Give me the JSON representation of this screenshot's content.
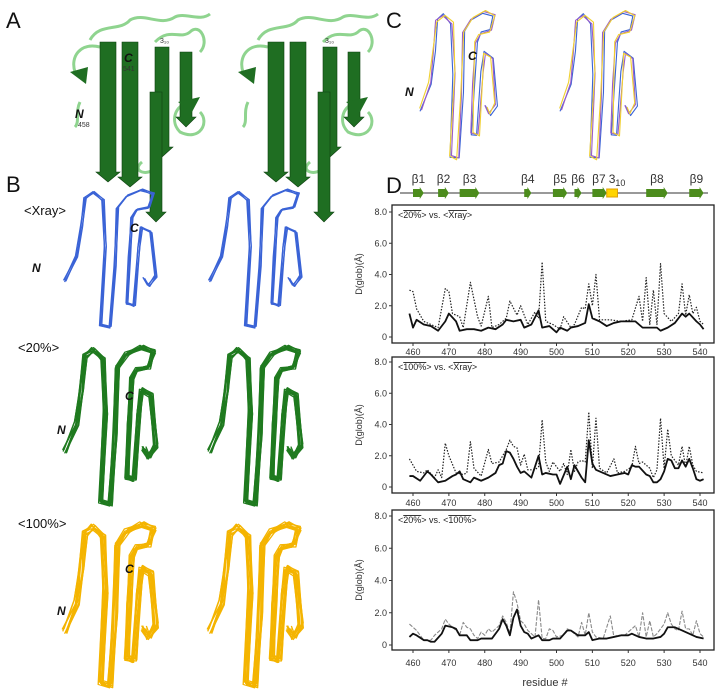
{
  "panels": {
    "A": {
      "label": "A",
      "c_term": "C",
      "c_res": "541",
      "n_term": "N",
      "n_res": "458",
      "helix": "3₁₀",
      "colors": {
        "strand": "#1f6e22",
        "loop": "#8fd48f"
      }
    },
    "B": {
      "label": "B",
      "ensembles": [
        {
          "name": "<Xray>",
          "color": "#3a63d6",
          "c_term": "C",
          "n_term": "N"
        },
        {
          "name": "<20%>",
          "color": "#1f7a1f",
          "c_term": "C",
          "n_term": "N"
        },
        {
          "name": "<100%>",
          "color": "#f4b400",
          "c_term": "C",
          "n_term": "N"
        }
      ]
    },
    "C": {
      "label": "C",
      "c_term": "C",
      "n_term": "N",
      "colors": [
        "#3a63d6",
        "#9a5cc8",
        "#f0d030"
      ]
    },
    "D": {
      "label": "D"
    }
  },
  "chart_data": {
    "type": "line",
    "secondary_structure": [
      {
        "label": "β1",
        "type": "strand",
        "start": 460,
        "end": 463
      },
      {
        "label": "β2",
        "type": "strand",
        "start": 467,
        "end": 470
      },
      {
        "label": "β3",
        "type": "strand",
        "start": 473,
        "end": 478.5
      },
      {
        "label": "β4",
        "type": "strand",
        "start": 491,
        "end": 493
      },
      {
        "label": "β5",
        "type": "strand",
        "start": 499,
        "end": 503
      },
      {
        "label": "β6",
        "type": "strand",
        "start": 505,
        "end": 507
      },
      {
        "label": "β7",
        "type": "strand",
        "start": 510,
        "end": 514
      },
      {
        "label": "3",
        "sub": "10",
        "type": "helix",
        "start": 514,
        "end": 517
      },
      {
        "label": "β8",
        "type": "strand",
        "start": 525,
        "end": 531
      },
      {
        "label": "β9",
        "type": "strand",
        "start": 537,
        "end": 541
      }
    ],
    "xlabel": "residue #",
    "ylabel": "D(glob)(Å)",
    "xlim": [
      455,
      544
    ],
    "ylim": [
      0,
      8
    ],
    "xticks": [
      460,
      470,
      480,
      490,
      500,
      510,
      520,
      530,
      540
    ],
    "yticks": [
      "0",
      "2.0",
      "4.0",
      "6.0",
      "8.0"
    ],
    "grid": false,
    "plots": [
      {
        "legend": {
          "a": "20%",
          "vs": "vs.",
          "b": "Xray"
        },
        "series": [
          {
            "style": "dotted",
            "x": [
              459,
              460,
              461,
              463,
              465,
              467,
              469,
              470,
              471,
              473,
              474,
              476,
              478,
              479,
              481,
              482,
              484,
              486,
              487,
              489,
              490,
              492,
              494,
              495,
              496,
              497,
              499,
              501,
              502,
              504,
              505,
              507,
              508,
              509,
              510,
              511,
              512,
              515,
              518,
              521,
              523,
              524,
              525,
              526,
              527,
              528,
              529,
              530,
              532,
              534,
              535,
              536,
              537,
              538,
              539,
              540,
              541
            ],
            "y": [
              3.0,
              2.9,
              1.8,
              1.0,
              0.8,
              0.6,
              3.1,
              2.9,
              1.5,
              1.3,
              0.6,
              3.5,
              1.3,
              0.7,
              2.6,
              0.6,
              0.8,
              1.2,
              2.3,
              1.4,
              2.0,
              0.8,
              1.6,
              1.2,
              4.8,
              1.0,
              0.8,
              0.5,
              1.3,
              0.6,
              0.8,
              1.9,
              1.8,
              3.4,
              2.0,
              4.0,
              1.1,
              1.1,
              1.0,
              1.1,
              2.6,
              1.0,
              3.8,
              0.8,
              3.0,
              0.8,
              4.7,
              1.5,
              1.0,
              1.5,
              3.4,
              1.4,
              2.7,
              1.5,
              1.9,
              1.0,
              0.8
            ]
          },
          {
            "style": "solid",
            "x": [
              459,
              460,
              461,
              463,
              465,
              467,
              469,
              470,
              472,
              473,
              475,
              477,
              479,
              481,
              483,
              485,
              486,
              488,
              490,
              491,
              493,
              495,
              496,
              498,
              500,
              501,
              503,
              504,
              506,
              508,
              509,
              510,
              512,
              514,
              516,
              518,
              520,
              522,
              524,
              526,
              528,
              529,
              531,
              533,
              535,
              536,
              537,
              539,
              540,
              541
            ],
            "y": [
              1.5,
              0.6,
              1.1,
              0.8,
              0.7,
              0.4,
              1.0,
              1.5,
              1.0,
              0.4,
              0.5,
              0.5,
              0.4,
              0.6,
              0.5,
              0.8,
              1.1,
              1.0,
              1.1,
              0.6,
              0.8,
              1.7,
              0.6,
              0.7,
              0.3,
              0.6,
              0.4,
              0.6,
              0.7,
              0.9,
              2.1,
              1.2,
              1.0,
              0.7,
              0.9,
              1.0,
              1.0,
              1.0,
              0.6,
              0.6,
              0.6,
              0.4,
              0.6,
              0.9,
              1.5,
              1.3,
              1.5,
              1.0,
              0.8,
              0.5
            ]
          }
        ]
      },
      {
        "legend": {
          "a": "100%",
          "vs": "vs.",
          "b": "Xray"
        },
        "series": [
          {
            "style": "dotted",
            "x": [
              459,
              461,
              463,
              464,
              466,
              467,
              468,
              469,
              470,
              472,
              474,
              475,
              476,
              477,
              479,
              481,
              482,
              484,
              486,
              487,
              488,
              489,
              490,
              491,
              492,
              494,
              495,
              496,
              497,
              498,
              499,
              501,
              502,
              503,
              504,
              505,
              506,
              507,
              508,
              509,
              510,
              511,
              512,
              514,
              516,
              517,
              519,
              521,
              522,
              523,
              524,
              526,
              527,
              528,
              529,
              530,
              531,
              532,
              534,
              535,
              536,
              537,
              538,
              539,
              541
            ],
            "y": [
              1.8,
              1.0,
              0.9,
              1.1,
              0.6,
              1.1,
              0.6,
              2.8,
              2.0,
              0.9,
              0.8,
              0.9,
              2.9,
              1.2,
              0.7,
              2.4,
              1.5,
              1.6,
              2.4,
              3.0,
              2.6,
              2.5,
              1.4,
              2.1,
              1.1,
              1.1,
              1.3,
              4.3,
              1.6,
              1.0,
              1.6,
              1.0,
              1.5,
              0.8,
              2.4,
              1.0,
              1.6,
              1.7,
              1.6,
              4.8,
              1.2,
              4.4,
              1.2,
              0.9,
              1.8,
              0.9,
              1.0,
              1.3,
              2.6,
              1.5,
              1.6,
              1.2,
              0.6,
              1.1,
              4.4,
              1.2,
              3.7,
              2.0,
              1.4,
              2.6,
              1.3,
              2.6,
              1.4,
              1.0,
              0.9
            ]
          },
          {
            "style": "solid",
            "x": [
              459,
              460,
              462,
              464,
              465,
              467,
              469,
              471,
              472,
              473,
              474,
              476,
              477,
              479,
              481,
              483,
              484,
              485,
              486,
              487,
              488,
              489,
              490,
              491,
              493,
              495,
              496,
              497,
              499,
              500,
              501,
              503,
              504,
              505,
              507,
              508,
              509,
              510,
              511,
              513,
              515,
              517,
              519,
              520,
              521,
              522,
              523,
              525,
              526,
              527,
              528,
              529,
              530,
              531,
              532,
              533,
              534,
              535,
              536,
              537,
              538,
              539,
              540,
              541
            ],
            "y": [
              0.7,
              0.7,
              0.4,
              1.0,
              0.8,
              0.3,
              0.4,
              0.7,
              0.8,
              1.0,
              0.5,
              0.3,
              0.6,
              0.4,
              0.6,
              0.9,
              1.4,
              1.5,
              2.3,
              2.2,
              1.8,
              1.3,
              0.9,
              1.0,
              0.6,
              2.0,
              0.8,
              0.9,
              0.8,
              0.8,
              0.2,
              1.3,
              0.5,
              1.4,
              0.6,
              0.3,
              3.0,
              1.5,
              1.1,
              0.9,
              0.7,
              0.8,
              0.9,
              0.8,
              1.4,
              1.3,
              1.3,
              0.8,
              0.7,
              0.3,
              0.3,
              0.5,
              1.0,
              1.8,
              1.7,
              1.2,
              1.2,
              1.7,
              1.3,
              1.8,
              1.2,
              0.5,
              0.4,
              0.5
            ]
          }
        ]
      },
      {
        "legend": {
          "a": "20%",
          "vs": "vs.",
          "b": "100%"
        },
        "series": [
          {
            "style": "dashed-gray",
            "x": [
              459,
              461,
              463,
              465,
              466,
              468,
              469,
              470,
              472,
              473,
              474,
              475,
              476,
              477,
              478,
              479,
              480,
              481,
              482,
              484,
              485,
              486,
              487,
              488,
              489,
              490,
              491,
              492,
              494,
              495,
              496,
              497,
              498,
              499,
              500,
              502,
              503,
              504,
              506,
              507,
              508,
              509,
              510,
              511,
              513,
              515,
              516,
              517,
              519,
              521,
              522,
              523,
              524,
              525,
              526,
              527,
              528,
              530,
              531,
              532,
              533,
              534,
              535,
              536,
              537,
              538,
              539,
              540,
              541
            ],
            "y": [
              1.3,
              0.9,
              0.3,
              0.3,
              0.6,
              1.0,
              1.6,
              1.3,
              0.9,
              0.6,
              1.4,
              1.1,
              1.0,
              0.6,
              0.4,
              0.8,
              0.6,
              1.0,
              0.8,
              1.2,
              1.8,
              1.4,
              0.7,
              3.3,
              2.6,
              1.5,
              1.3,
              0.9,
              0.5,
              2.8,
              0.4,
              0.4,
              1.0,
              0.9,
              0.5,
              0.6,
              1.0,
              0.9,
              0.5,
              1.4,
              0.6,
              2.0,
              0.8,
              0.5,
              0.4,
              1.8,
              0.5,
              0.6,
              0.6,
              1.0,
              1.2,
              0.5,
              2.0,
              0.5,
              1.5,
              0.5,
              0.7,
              1.3,
              2.0,
              1.3,
              1.0,
              0.9,
              2.1,
              1.0,
              1.0,
              0.6,
              1.5,
              0.7,
              0.5
            ]
          },
          {
            "style": "solid",
            "x": [
              459,
              460,
              461,
              463,
              464,
              465,
              466,
              468,
              469,
              471,
              472,
              473,
              475,
              476,
              478,
              479,
              481,
              482,
              484,
              485,
              486,
              487,
              488,
              489,
              490,
              491,
              492,
              493,
              494,
              495,
              496,
              498,
              499,
              501,
              503,
              504,
              506,
              508,
              509,
              510,
              512,
              514,
              516,
              518,
              520,
              521,
              523,
              525,
              527,
              529,
              530,
              531,
              533,
              535,
              536,
              537,
              538,
              539,
              541
            ],
            "y": [
              0.5,
              0.7,
              0.6,
              0.3,
              0.3,
              0.2,
              0.2,
              0.7,
              1.2,
              1.1,
              1.0,
              0.6,
              0.6,
              0.3,
              0.3,
              0.4,
              0.4,
              0.4,
              1.0,
              1.6,
              1.2,
              0.6,
              1.7,
              2.2,
              1.2,
              0.8,
              0.7,
              0.4,
              0.5,
              0.6,
              0.3,
              0.3,
              0.4,
              0.4,
              0.9,
              0.9,
              0.6,
              0.6,
              0.8,
              0.3,
              0.4,
              0.4,
              0.5,
              0.6,
              0.6,
              0.7,
              0.5,
              0.4,
              0.4,
              0.5,
              0.7,
              1.1,
              1.1,
              0.9,
              0.8,
              0.7,
              0.6,
              0.5,
              0.4
            ]
          }
        ]
      }
    ]
  }
}
